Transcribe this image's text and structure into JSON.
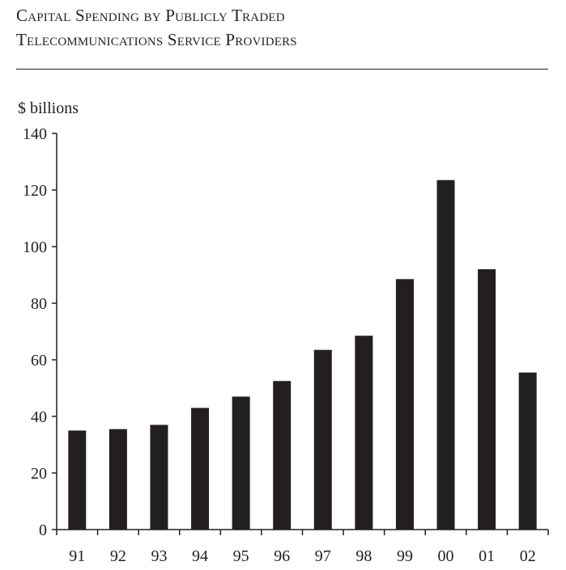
{
  "chart_data": {
    "type": "bar",
    "title": [
      "Capital Spending by Publicly Traded",
      "Telecommunications Service Providers"
    ],
    "ylabel": "$ billions",
    "xlabel": "",
    "categories": [
      "91",
      "92",
      "93",
      "94",
      "95",
      "96",
      "97",
      "98",
      "99",
      "00",
      "01",
      "02"
    ],
    "values": [
      35,
      35.5,
      37,
      43,
      47,
      52.5,
      63.5,
      68.5,
      88.5,
      123.5,
      92,
      55.5
    ],
    "ylim": [
      0,
      140
    ],
    "yticks": [
      "0",
      "20",
      "40",
      "60",
      "80",
      "100",
      "120",
      "140"
    ],
    "grid": false,
    "bar_color": "#231f20"
  }
}
